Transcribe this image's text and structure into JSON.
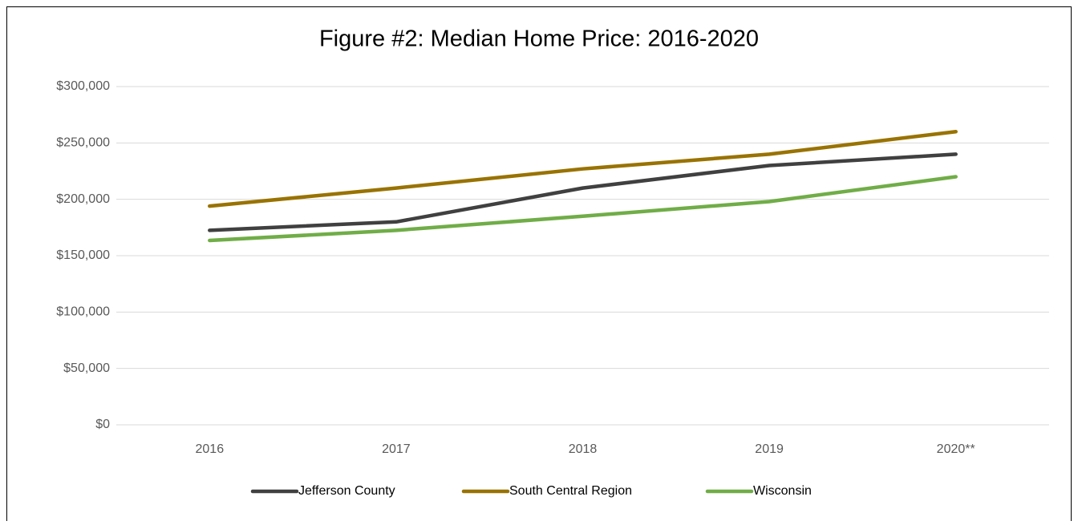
{
  "chart_data": {
    "type": "line",
    "title": "Figure #2:  Median Home Price: 2016-2020",
    "categories": [
      "2016",
      "2017",
      "2018",
      "2019",
      "2020**"
    ],
    "series": [
      {
        "name": "Jefferson County",
        "color": "#404040",
        "values": [
          172500,
          180000,
          210000,
          230000,
          240000
        ]
      },
      {
        "name": "South Central Region",
        "color": "#997300",
        "values": [
          194000,
          210000,
          227000,
          240000,
          260000
        ]
      },
      {
        "name": "Wisconsin",
        "color": "#70ad47",
        "values": [
          163500,
          172500,
          185000,
          198000,
          220000
        ]
      }
    ],
    "ylim": [
      0,
      300000
    ],
    "yticks": [
      {
        "value": 0,
        "label": "$0"
      },
      {
        "value": 50000,
        "label": "$50,000"
      },
      {
        "value": 100000,
        "label": "$100,000"
      },
      {
        "value": 150000,
        "label": "$150,000"
      },
      {
        "value": 200000,
        "label": "$200,000"
      },
      {
        "value": 250000,
        "label": "$250,000"
      },
      {
        "value": 300000,
        "label": "$300,000"
      }
    ],
    "grid": true,
    "legend": "bottom"
  }
}
